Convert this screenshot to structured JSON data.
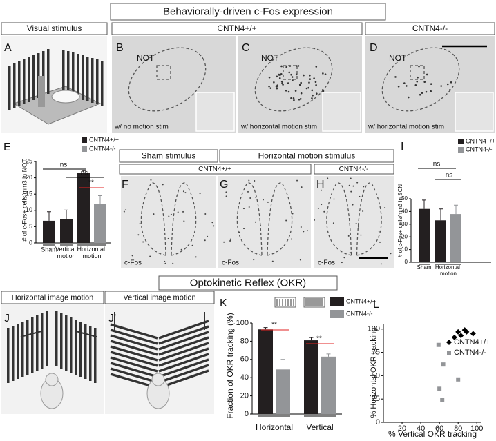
{
  "figure": {
    "top_title": "Behaviorally-driven c-Fos expression",
    "top_headers": [
      "Visual stimulus",
      "CNTN4+/+",
      "CNTN4-/-"
    ],
    "letters": [
      "A",
      "B",
      "C",
      "D",
      "E",
      "F",
      "G",
      "H",
      "I",
      "J",
      "J'",
      "K",
      "L"
    ],
    "not_labels": [
      "NOT",
      "NOT",
      "NOT"
    ],
    "captions": [
      "w/ no motion stim",
      "w/ horizontal motion stim",
      "w/ horizontal motion stim"
    ],
    "stim_headers": [
      "Sham stimulus",
      "Horizontal motion stimulus"
    ],
    "genotype_headers": [
      "CNTN4+/+",
      "CNTN4-/-"
    ],
    "stain_labels": [
      "c-Fos",
      "c-Fos",
      "c-Fos"
    ],
    "bottom_title": "Optokinetic Reflex (OKR)",
    "motion_headers": [
      "Horizontal image motion",
      "Vertical image motion"
    ]
  },
  "chart_data": [
    {
      "type": "bar",
      "ylabel": "# of c-Fos+ cells/mm3 in NOT",
      "categories": [
        "Sham",
        "Vertical motion",
        "Horizontal motion"
      ],
      "series": [
        {
          "name": "CNTN4+/+",
          "color": "#231f20",
          "values": [
            6.8,
            7.3,
            21.5
          ],
          "errors": [
            2.8,
            2.8,
            0.7
          ]
        },
        {
          "name": "CNTN4-/-",
          "color": "#939598",
          "values": [
            null,
            null,
            12
          ],
          "errors": [
            null,
            null,
            2.5
          ]
        }
      ],
      "ylim": [
        0,
        25
      ],
      "yticks": [
        0,
        5,
        10,
        15,
        20,
        25
      ],
      "annotations": [
        "ns",
        "ns",
        "**"
      ]
    },
    {
      "type": "bar",
      "ylabel": "# of c-Fos+ cells/mm3 in SCN",
      "categories": [
        "Sham",
        "Horizontal motion"
      ],
      "series": [
        {
          "name": "CNTN4+/+",
          "color": "#231f20",
          "values": [
            42,
            33
          ],
          "errors": [
            7,
            9
          ]
        },
        {
          "name": "CNTN4-/-",
          "color": "#939598",
          "values": [
            null,
            38
          ],
          "errors": [
            null,
            7
          ]
        }
      ],
      "ylim": [
        0,
        50
      ],
      "yticks": [
        0,
        10,
        20,
        30,
        40,
        50
      ],
      "annotations": [
        "ns",
        "ns"
      ]
    },
    {
      "type": "bar",
      "ylabel": "Fraction of OKR tracking (%)",
      "categories": [
        "Horizontal",
        "Vertical"
      ],
      "series": [
        {
          "name": "CNTN4+/+",
          "color": "#231f20",
          "values": [
            93,
            81
          ],
          "errors": [
            2,
            3
          ]
        },
        {
          "name": "CNTN4-/-",
          "color": "#939598",
          "values": [
            49,
            63
          ],
          "errors": [
            11,
            3
          ]
        }
      ],
      "ylim": [
        0,
        100
      ],
      "yticks": [
        0,
        20,
        40,
        60,
        80,
        100
      ],
      "annotations": [
        "**",
        "**"
      ]
    },
    {
      "type": "scatter",
      "xlabel": "% Vertical OKR tracking",
      "ylabel": "% Horizontal OKR tracking",
      "series": [
        {
          "name": "CNTN4+/+",
          "color": "#000000",
          "marker": "diamond",
          "x": [
            76,
            80,
            83,
            87,
            89,
            96
          ],
          "y": [
            91,
            97,
            93,
            99,
            97,
            95
          ]
        },
        {
          "name": "CNTN4-/-",
          "color": "#939598",
          "marker": "square",
          "x": [
            59,
            64,
            60,
            63,
            80
          ],
          "y": [
            83,
            62,
            36,
            24,
            46
          ]
        }
      ],
      "xlim": [
        0,
        105
      ],
      "ylim": [
        0,
        105
      ],
      "xticks": [
        20,
        40,
        60,
        80,
        100
      ],
      "yticks": [
        0,
        25,
        50,
        75,
        100
      ]
    }
  ]
}
